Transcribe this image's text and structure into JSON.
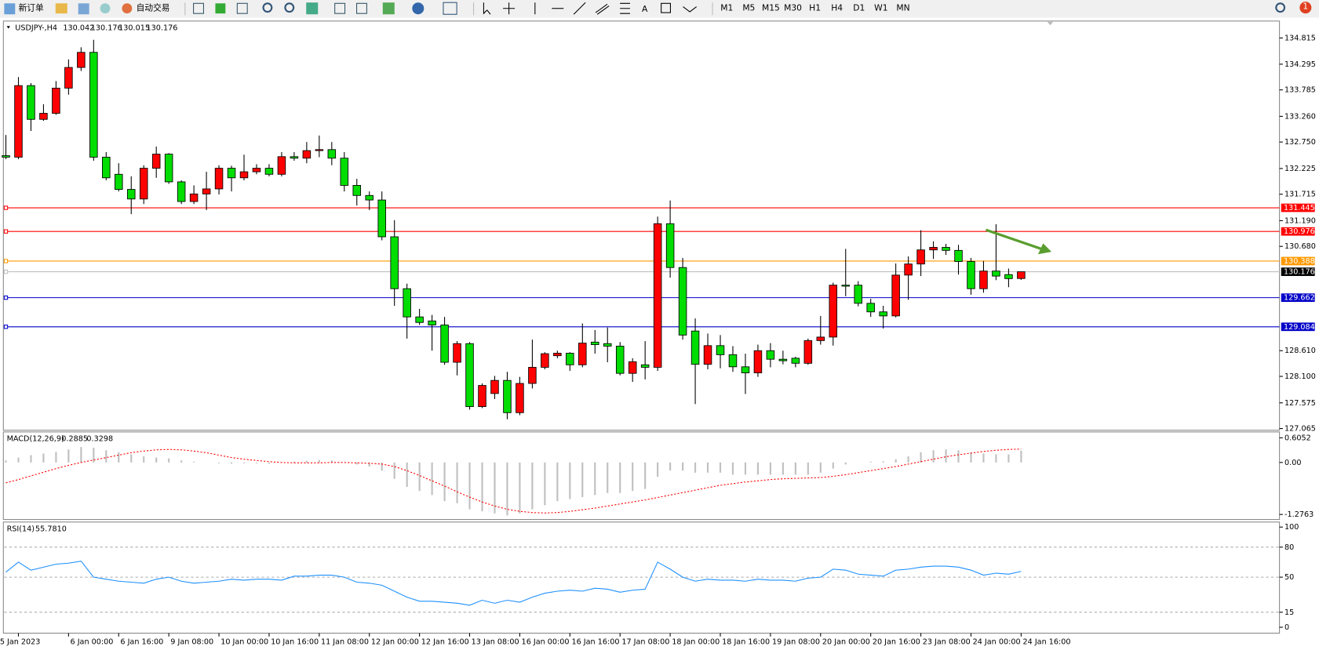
{
  "toolbar": {
    "new_order": "新订单",
    "auto_trading": "自动交易",
    "text_tool": "A",
    "timeframes": [
      "M1",
      "M5",
      "M15",
      "M30",
      "H1",
      "H4",
      "D1",
      "W1",
      "MN"
    ],
    "notifications": 1
  },
  "chart_data": [
    {
      "type": "candlestick",
      "symbol": "USDJPY-,H4",
      "categories": [
        null,
        "5 Jan 2023",
        null,
        null,
        null,
        "6 Jan 00:00",
        null,
        null,
        null,
        "6 Jan 16:00",
        null,
        null,
        null,
        "9 Jan 08:00",
        null,
        null,
        null,
        "10 Jan 00:00",
        null,
        null,
        null,
        "10 Jan 16:00",
        null,
        null,
        null,
        "11 Jan 08:00",
        null,
        null,
        null,
        "12 Jan 00:00",
        null,
        null,
        null,
        "12 Jan 16:00",
        null,
        null,
        null,
        "13 Jan 08:00",
        null,
        null,
        null,
        "16 Jan 00:00",
        null,
        null,
        null,
        "16 Jan 16:00",
        null,
        null,
        null,
        "17 Jan 08:00",
        null,
        null,
        null,
        "18 Jan 00:00",
        null,
        null,
        null,
        "18 Jan 16:00",
        null,
        null,
        null,
        "19 Jan 08:00",
        null,
        null,
        null,
        "20 Jan 00:00",
        null,
        null,
        null,
        "20 Jan 16:00",
        null,
        null,
        null,
        "23 Jan 08:00",
        null,
        null,
        null,
        "24 Jan 00:00",
        null,
        null,
        null,
        "24 Jan 16:00"
      ],
      "open": [
        132.48,
        132.45,
        133.87,
        133.2,
        133.32,
        133.82,
        134.23,
        134.53,
        132.45,
        132.11,
        131.81,
        131.62,
        132.23,
        132.51,
        131.96,
        131.57,
        131.72,
        131.82,
        132.23,
        132.04,
        132.16,
        132.23,
        132.11,
        132.46,
        132.43,
        132.58,
        132.6,
        132.43,
        131.89,
        131.69,
        131.6,
        130.87,
        129.84,
        129.28,
        129.2,
        129.12,
        128.38,
        128.75,
        127.5,
        127.76,
        128.02,
        127.38,
        127.96,
        128.28,
        128.51,
        128.56,
        128.33,
        128.78,
        128.75,
        128.7,
        128.16,
        128.33,
        128.28,
        131.13,
        130.26,
        129.0,
        128.34,
        128.71,
        128.53,
        128.29,
        128.17,
        128.61,
        128.44,
        128.46,
        128.36,
        128.81,
        128.88,
        129.91,
        129.91,
        129.55,
        129.38,
        129.3,
        130.11,
        130.33,
        130.61,
        130.66,
        130.6,
        130.38,
        129.84,
        130.19,
        130.12,
        130.042
      ],
      "high": [
        132.89,
        134.04,
        133.92,
        133.5,
        133.96,
        134.39,
        134.63,
        134.78,
        132.55,
        132.33,
        132.07,
        132.29,
        132.66,
        132.53,
        131.99,
        131.89,
        132.16,
        132.29,
        132.28,
        132.5,
        132.31,
        132.31,
        132.55,
        132.55,
        132.75,
        132.88,
        132.75,
        132.55,
        132.02,
        131.77,
        131.77,
        131.2,
        129.94,
        129.44,
        129.32,
        129.28,
        128.8,
        128.78,
        127.96,
        128.11,
        128.19,
        128.09,
        128.83,
        128.58,
        128.61,
        128.58,
        129.15,
        129.02,
        129.07,
        128.78,
        128.46,
        128.8,
        131.27,
        131.59,
        130.45,
        129.25,
        128.95,
        128.92,
        128.7,
        128.55,
        128.73,
        128.76,
        128.61,
        128.49,
        128.85,
        129.3,
        129.96,
        130.63,
        129.99,
        129.64,
        129.5,
        130.34,
        130.48,
        131.0,
        130.78,
        130.73,
        130.71,
        130.45,
        130.39,
        131.12,
        130.24,
        130.176
      ],
      "low": [
        132.41,
        132.41,
        132.97,
        133.17,
        133.29,
        133.69,
        134.16,
        132.38,
        131.99,
        131.77,
        131.32,
        131.52,
        132.04,
        131.92,
        131.52,
        131.52,
        131.4,
        131.71,
        131.77,
        131.99,
        132.11,
        132.07,
        132.07,
        132.38,
        132.33,
        132.45,
        132.29,
        131.77,
        131.49,
        131.4,
        130.8,
        129.5,
        128.85,
        129.12,
        128.61,
        128.33,
        128.12,
        127.44,
        127.47,
        127.65,
        127.25,
        127.33,
        127.86,
        128.24,
        128.46,
        128.21,
        128.28,
        128.55,
        128.38,
        128.12,
        127.99,
        128.04,
        128.21,
        130.06,
        128.83,
        127.55,
        128.24,
        128.26,
        128.19,
        127.75,
        128.09,
        128.28,
        128.34,
        128.28,
        128.33,
        128.73,
        128.71,
        129.69,
        129.49,
        129.28,
        129.05,
        129.27,
        129.62,
        130.09,
        130.43,
        130.51,
        130.12,
        129.72,
        129.76,
        130.01,
        129.87,
        130.015
      ],
      "close": [
        132.45,
        133.87,
        133.2,
        133.32,
        133.82,
        134.23,
        134.53,
        132.45,
        132.04,
        131.81,
        131.62,
        132.23,
        132.51,
        131.96,
        131.57,
        131.72,
        131.82,
        132.23,
        132.04,
        132.16,
        132.23,
        132.11,
        132.46,
        132.43,
        132.58,
        132.6,
        132.43,
        131.89,
        131.69,
        131.6,
        130.87,
        129.84,
        129.28,
        129.17,
        129.12,
        128.38,
        128.75,
        127.5,
        127.92,
        128.02,
        127.38,
        127.96,
        128.28,
        128.55,
        128.56,
        128.33,
        128.76,
        128.73,
        128.7,
        128.16,
        128.39,
        128.28,
        131.13,
        130.26,
        128.92,
        128.34,
        128.71,
        128.53,
        128.29,
        128.17,
        128.61,
        128.44,
        128.41,
        128.36,
        128.81,
        128.88,
        129.91,
        129.89,
        129.55,
        129.38,
        129.3,
        130.11,
        130.33,
        130.61,
        130.66,
        130.6,
        130.38,
        129.84,
        130.19,
        130.09,
        130.04,
        130.176
      ],
      "up_color": "#ff0000",
      "down_color": "#00dd00",
      "ylim": [
        127.031,
        135.151
      ],
      "yticks": [
        134.815,
        134.295,
        133.785,
        {
          "value": 133.26,
          "label": "133.260"
        },
        {
          "value": 132.75,
          "label": "132.750"
        },
        132.225,
        131.715,
        {
          "value": 131.19,
          "label": "131.190"
        },
        {
          "value": 130.68,
          "label": "130.680"
        },
        {
          "value": 128.61,
          "label": "128.610"
        },
        {
          "value": 128.1,
          "label": "128.100"
        },
        127.575,
        127.065
      ],
      "levels": [
        {
          "value": 131.445,
          "color": "#ff0000"
        },
        {
          "value": 130.976,
          "color": "#ff0000"
        },
        {
          "value": 130.388,
          "color": "#ff9900"
        },
        {
          "value": 130.176,
          "color": "#c0c0c0"
        },
        {
          "value": 129.662,
          "color": "#0000c8"
        },
        {
          "value": 129.084,
          "color": "#0000c8"
        }
      ]
    },
    {
      "type": "macd",
      "title": "MACD(12,26,9)",
      "histogram": {
        "color": "#c0c0c0",
        "values": [
          0.05,
          0.12,
          0.18,
          0.22,
          0.26,
          0.32,
          0.38,
          0.36,
          0.3,
          0.25,
          0.2,
          0.15,
          0.12,
          0.1,
          0.05,
          0.02,
          0.0,
          -0.02,
          -0.03,
          -0.02,
          -0.02,
          -0.03,
          0.0,
          0.02,
          0.04,
          0.06,
          0.05,
          0.0,
          -0.05,
          -0.1,
          -0.2,
          -0.4,
          -0.6,
          -0.7,
          -0.8,
          -0.95,
          -1.0,
          -1.15,
          -1.2,
          -1.25,
          -1.3,
          -1.25,
          -1.15,
          -1.05,
          -0.95,
          -0.9,
          -0.85,
          -0.8,
          -0.75,
          -0.75,
          -0.7,
          -0.65,
          -0.35,
          -0.2,
          -0.2,
          -0.25,
          -0.25,
          -0.25,
          -0.3,
          -0.3,
          -0.3,
          -0.3,
          -0.3,
          -0.3,
          -0.3,
          -0.25,
          -0.15,
          -0.05,
          0.0,
          0.02,
          0.03,
          0.08,
          0.15,
          0.25,
          0.3,
          0.32,
          0.3,
          0.25,
          0.22,
          0.2,
          0.2,
          0.2885
        ]
      },
      "signal": {
        "color": "#ff0000",
        "values": [
          -0.5,
          -0.42,
          -0.33,
          -0.24,
          -0.15,
          -0.07,
          0.0,
          0.06,
          0.12,
          0.18,
          0.24,
          0.28,
          0.31,
          0.32,
          0.31,
          0.28,
          0.24,
          0.18,
          0.12,
          0.08,
          0.05,
          0.02,
          0.0,
          -0.01,
          -0.01,
          -0.01,
          0.0,
          0.0,
          -0.01,
          -0.02,
          -0.04,
          -0.1,
          -0.2,
          -0.32,
          -0.45,
          -0.58,
          -0.72,
          -0.85,
          -0.97,
          -1.07,
          -1.15,
          -1.2,
          -1.23,
          -1.24,
          -1.23,
          -1.2,
          -1.16,
          -1.12,
          -1.07,
          -1.02,
          -0.97,
          -0.92,
          -0.86,
          -0.8,
          -0.74,
          -0.68,
          -0.62,
          -0.56,
          -0.52,
          -0.48,
          -0.45,
          -0.42,
          -0.4,
          -0.39,
          -0.38,
          -0.37,
          -0.34,
          -0.3,
          -0.25,
          -0.2,
          -0.15,
          -0.1,
          -0.04,
          0.02,
          0.08,
          0.14,
          0.19,
          0.23,
          0.27,
          0.3,
          0.32,
          0.3298
        ]
      },
      "ylim": [
        -1.2763,
        0.6052
      ],
      "yticks": [
        0.6052,
        {
          "value": 0,
          "label": "0.00"
        },
        -1.2763
      ]
    },
    {
      "type": "line",
      "title": "RSI(14)",
      "color": "#1e90ff",
      "last_value_label": "55.7810",
      "values": [
        55,
        65,
        57,
        60,
        63,
        64,
        66,
        50,
        48,
        46,
        45,
        44,
        48,
        50,
        46,
        44,
        45,
        46,
        48,
        47,
        48,
        48,
        47,
        51,
        51,
        52,
        52,
        50,
        45,
        44,
        42,
        36,
        30,
        26,
        26,
        25,
        24,
        22,
        27,
        24,
        27,
        25,
        30,
        34,
        36,
        37,
        36,
        39,
        38,
        35,
        37,
        38,
        65,
        58,
        50,
        46,
        48,
        47,
        47,
        46,
        48,
        47,
        47,
        46,
        49,
        50,
        58,
        57,
        53,
        52,
        51,
        57,
        58,
        60,
        61,
        61,
        60,
        57,
        52,
        54,
        53,
        55.781
      ],
      "ylim": [
        0,
        100
      ],
      "yticks": [
        100,
        80,
        50,
        15,
        0
      ]
    }
  ]
}
